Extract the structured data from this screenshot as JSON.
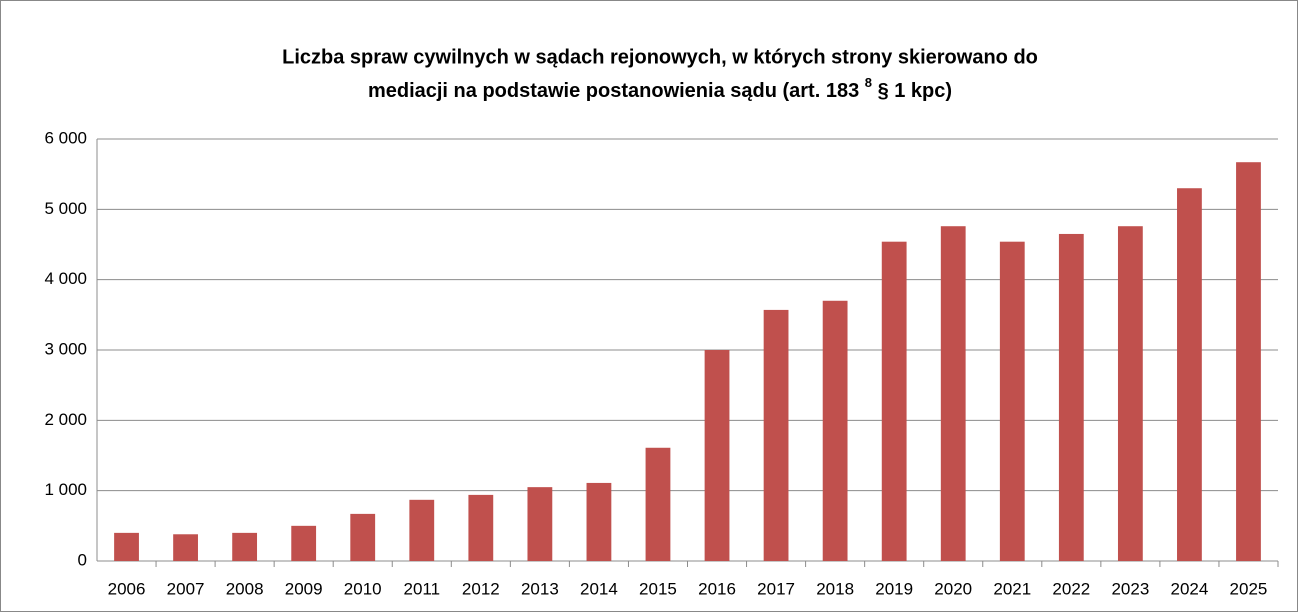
{
  "chart_data": {
    "type": "bar",
    "title": [
      "Liczba spraw cywilnych w sądach rejonowych, w których strony skierowano do",
      "mediacji na podstawie postanowienia sądu (art. 183",
      "8",
      "§ 1 kpc)"
    ],
    "categories": [
      "2006",
      "2007",
      "2008",
      "2009",
      "2010",
      "2011",
      "2012",
      "2013",
      "2014",
      "2015",
      "2016",
      "2017",
      "2018",
      "2019",
      "2020",
      "2021",
      "2022",
      "2023",
      "2024",
      "2025"
    ],
    "values": [
      400,
      380,
      400,
      500,
      670,
      870,
      940,
      1050,
      1110,
      1610,
      3000,
      3570,
      3700,
      4540,
      4760,
      4540,
      4650,
      4760,
      5300,
      5670
    ],
    "color": "#c0504d",
    "ylim": [
      0,
      6000
    ],
    "yticks": [
      0,
      {
        "value": 1000,
        "label": "1 000"
      },
      {
        "value": 2000,
        "label": "2 000"
      },
      {
        "value": 3000,
        "label": "3 000"
      },
      {
        "value": 4000,
        "label": "4 000"
      },
      {
        "value": 5000,
        "label": "5 000"
      },
      {
        "value": 6000,
        "label": "6 000"
      }
    ],
    "grid": true
  }
}
